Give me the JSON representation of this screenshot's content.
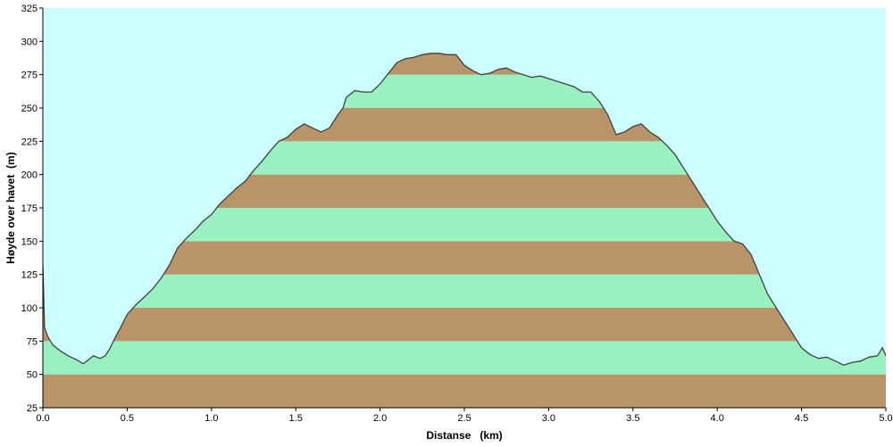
{
  "chart_data": {
    "type": "area",
    "xlabel": "Distanse   (km)",
    "ylabel": "Høyde over havet  (m)",
    "xlim": [
      0,
      5.0
    ],
    "ylim": [
      25,
      325
    ],
    "x_ticks": [
      "0.0",
      "0.5",
      "1.0",
      "1.5",
      "2.0",
      "2.5",
      "3.0",
      "3.5",
      "4.0",
      "4.5",
      "5.0"
    ],
    "y_ticks": [
      "25",
      "50",
      "75",
      "100",
      "125",
      "150",
      "175",
      "200",
      "225",
      "250",
      "275",
      "300",
      "325"
    ],
    "band_height": 25,
    "colors": {
      "sky": "#ccffff",
      "band_light": "#99f0c0",
      "band_dark": "#b89468",
      "profile_line": "#404040"
    },
    "series": [
      {
        "x": [
          0.0,
          0.01,
          0.03,
          0.06,
          0.1,
          0.15,
          0.2,
          0.24,
          0.27,
          0.3,
          0.32,
          0.34,
          0.37,
          0.4,
          0.43,
          0.46,
          0.5,
          0.55,
          0.6,
          0.65,
          0.7,
          0.75,
          0.8,
          0.85,
          0.9,
          0.95,
          1.0,
          1.05,
          1.1,
          1.15,
          1.2,
          1.25,
          1.3,
          1.35,
          1.4,
          1.45,
          1.5,
          1.55,
          1.6,
          1.65,
          1.7,
          1.75,
          1.78,
          1.8,
          1.85,
          1.9,
          1.95,
          2.0,
          2.05,
          2.1,
          2.15,
          2.2,
          2.25,
          2.3,
          2.35,
          2.4,
          2.45,
          2.5,
          2.55,
          2.6,
          2.65,
          2.7,
          2.75,
          2.8,
          2.85,
          2.9,
          2.95,
          3.0,
          3.05,
          3.1,
          3.15,
          3.2,
          3.25,
          3.3,
          3.35,
          3.4,
          3.45,
          3.5,
          3.55,
          3.6,
          3.65,
          3.7,
          3.75,
          3.8,
          3.85,
          3.9,
          3.95,
          4.0,
          4.05,
          4.1,
          4.15,
          4.2,
          4.25,
          4.3,
          4.35,
          4.4,
          4.45,
          4.5,
          4.55,
          4.6,
          4.65,
          4.7,
          4.75,
          4.8,
          4.85,
          4.9,
          4.95,
          4.98,
          5.0
        ],
        "y": [
          132,
          85,
          78,
          72,
          68,
          64,
          61,
          58,
          61,
          64,
          63,
          62,
          64,
          70,
          78,
          85,
          95,
          102,
          108,
          114,
          122,
          132,
          145,
          152,
          158,
          165,
          170,
          178,
          184,
          190,
          195,
          203,
          210,
          218,
          225,
          228,
          234,
          238,
          235,
          232,
          235,
          245,
          250,
          258,
          263,
          262,
          262,
          268,
          276,
          284,
          287,
          288,
          290,
          291,
          291,
          290,
          290,
          282,
          278,
          275,
          276,
          279,
          280,
          277,
          275,
          273,
          274,
          272,
          270,
          268,
          266,
          262,
          262,
          255,
          245,
          230,
          232,
          236,
          238,
          232,
          228,
          222,
          215,
          205,
          195,
          185,
          175,
          165,
          157,
          150,
          148,
          140,
          125,
          110,
          100,
          90,
          80,
          70,
          65,
          62,
          63,
          60,
          57,
          59,
          60,
          63,
          64,
          70,
          64
        ]
      }
    ]
  }
}
